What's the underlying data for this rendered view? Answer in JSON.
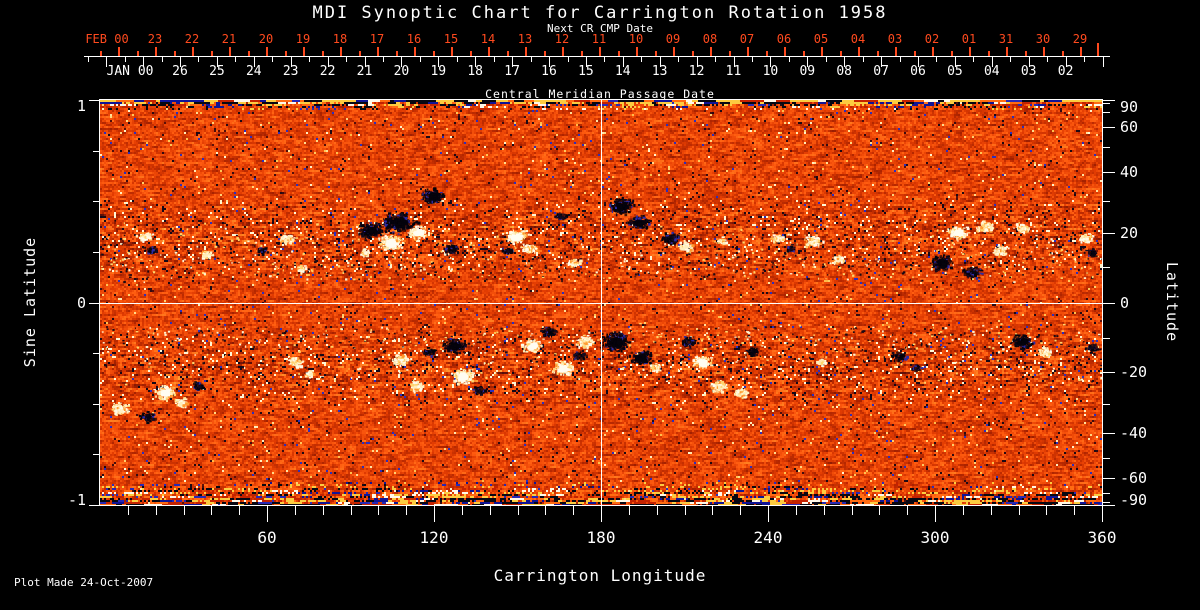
{
  "title": "MDI Synoptic Chart for Carrington Rotation 1958",
  "colors": {
    "accent_red": "#ff4a1e",
    "fg": "#ffffff",
    "bg": "#000000"
  },
  "top_axis": {
    "secondary_label": "Next CR CMP Date",
    "primary_label": "Central Meridian Passage Date",
    "next_rotation_row": {
      "prefix": "FEB 00",
      "days": [
        "23",
        "22",
        "21",
        "20",
        "19",
        "18",
        "17",
        "16",
        "15",
        "14",
        "13",
        "12",
        "11",
        "10",
        "09",
        "08",
        "07",
        "06",
        "05",
        "04",
        "03",
        "02",
        "01",
        "31",
        "30",
        "29"
      ]
    },
    "current_rotation_row": {
      "prefix": "JAN 00",
      "days": [
        "26",
        "25",
        "24",
        "23",
        "22",
        "21",
        "20",
        "19",
        "18",
        "17",
        "16",
        "15",
        "14",
        "13",
        "12",
        "11",
        "10",
        "09",
        "08",
        "07",
        "06",
        "05",
        "04",
        "03",
        "02"
      ]
    }
  },
  "x_axis": {
    "label": "Carrington Longitude",
    "ticks": [
      "60",
      "120",
      "180",
      "240",
      "300",
      "360"
    ]
  },
  "y_axis_left": {
    "label": "Sine Latitude",
    "ticks": [
      "1",
      "0",
      "-1"
    ]
  },
  "y_axis_right": {
    "label": "Latitude",
    "ticks": [
      "90",
      "60",
      "40",
      "20",
      "0",
      "-20",
      "-40",
      "-60",
      "-90"
    ]
  },
  "footer": {
    "plot_made": "Plot Made 24-Oct-2007"
  },
  "chart_data": {
    "type": "heatmap",
    "title": "MDI Synoptic Chart for Carrington Rotation 1958",
    "xlabel": "Carrington Longitude",
    "ylabel_left": "Sine Latitude",
    "ylabel_right": "Latitude",
    "top_axis_label": "Central Meridian Passage Date",
    "top_axis_secondary_label": "Next CR CMP Date",
    "xlim": [
      0,
      360
    ],
    "x_major_ticks": [
      60,
      120,
      180,
      240,
      300,
      360
    ],
    "sine_latitude_lim": [
      -1,
      1
    ],
    "latitude_labeled_ticks": [
      90,
      60,
      40,
      20,
      0,
      -20,
      -40,
      -60,
      -90
    ],
    "latitude_minor_ticks": [
      80,
      70,
      50,
      30,
      10,
      -10,
      -30,
      -50,
      -70,
      -80
    ],
    "crosshair": {
      "longitude": 180,
      "sine_latitude": 0
    },
    "base_palette": [
      "#140818",
      "#601008",
      "#a82200",
      "#e23c02",
      "#ff5c10",
      "#ff8222",
      "#ffc450",
      "#fff8d6"
    ],
    "speck_colors": {
      "blue": "#2c2ebc",
      "dark": "#1c0a14",
      "bright": "#fff3cf"
    },
    "polar_noise_bands": "streaky dark/yellow/blue noise along top and bottom edges",
    "active_regions": [
      [
        16,
        0.33,
        "p",
        6
      ],
      [
        18,
        0.26,
        "n",
        4
      ],
      [
        38,
        0.24,
        "p",
        5
      ],
      [
        58,
        0.26,
        "n",
        4
      ],
      [
        67,
        0.32,
        "p",
        6
      ],
      [
        72,
        0.17,
        "p",
        4
      ],
      [
        95,
        0.25,
        "p",
        5
      ],
      [
        97,
        0.36,
        "n",
        9
      ],
      [
        104,
        0.3,
        "p",
        9
      ],
      [
        107,
        0.4,
        "n",
        13
      ],
      [
        114,
        0.35,
        "p",
        8
      ],
      [
        119,
        0.53,
        "n",
        9
      ],
      [
        126,
        0.27,
        "n",
        6
      ],
      [
        149,
        0.33,
        "p",
        8
      ],
      [
        154,
        0.27,
        "p",
        6
      ],
      [
        146,
        0.26,
        "n",
        4
      ],
      [
        165,
        0.43,
        "n",
        5
      ],
      [
        170,
        0.2,
        "p",
        5
      ],
      [
        187,
        0.48,
        "n",
        10
      ],
      [
        193,
        0.4,
        "n",
        8
      ],
      [
        205,
        0.32,
        "n",
        7
      ],
      [
        210,
        0.28,
        "p",
        6
      ],
      [
        223,
        0.31,
        "p",
        4
      ],
      [
        243,
        0.32,
        "p",
        5
      ],
      [
        248,
        0.27,
        "n",
        4
      ],
      [
        256,
        0.31,
        "p",
        7
      ],
      [
        265,
        0.22,
        "p",
        5
      ],
      [
        302,
        0.2,
        "n",
        9
      ],
      [
        308,
        0.35,
        "p",
        8
      ],
      [
        313,
        0.15,
        "n",
        7
      ],
      [
        318,
        0.38,
        "p",
        7
      ],
      [
        323,
        0.26,
        "p",
        6
      ],
      [
        331,
        0.37,
        "p",
        6
      ],
      [
        354,
        0.32,
        "p",
        6
      ],
      [
        356,
        0.25,
        "n",
        5
      ],
      [
        7,
        -0.52,
        "p",
        7
      ],
      [
        17,
        -0.56,
        "n",
        6
      ],
      [
        23,
        -0.44,
        "p",
        8
      ],
      [
        29,
        -0.49,
        "p",
        6
      ],
      [
        35,
        -0.41,
        "n",
        5
      ],
      [
        70,
        -0.29,
        "p",
        6
      ],
      [
        75,
        -0.35,
        "p",
        4
      ],
      [
        108,
        -0.28,
        "p",
        7
      ],
      [
        113,
        -0.41,
        "p",
        6
      ],
      [
        118,
        -0.24,
        "n",
        5
      ],
      [
        127,
        -0.21,
        "n",
        9
      ],
      [
        130,
        -0.36,
        "p",
        9
      ],
      [
        136,
        -0.43,
        "n",
        5
      ],
      [
        155,
        -0.21,
        "p",
        8
      ],
      [
        161,
        -0.14,
        "n",
        6
      ],
      [
        166,
        -0.32,
        "p",
        9
      ],
      [
        172,
        -0.26,
        "n",
        5
      ],
      [
        174,
        -0.19,
        "p",
        7
      ],
      [
        185,
        -0.19,
        "n",
        11
      ],
      [
        194,
        -0.27,
        "n",
        9
      ],
      [
        199,
        -0.32,
        "p",
        5
      ],
      [
        211,
        -0.19,
        "n",
        6
      ],
      [
        216,
        -0.29,
        "p",
        8
      ],
      [
        222,
        -0.41,
        "p",
        7
      ],
      [
        230,
        -0.44,
        "p",
        6
      ],
      [
        234,
        -0.24,
        "n",
        5
      ],
      [
        259,
        -0.29,
        "p",
        4
      ],
      [
        287,
        -0.26,
        "n",
        6
      ],
      [
        293,
        -0.32,
        "n",
        4
      ],
      [
        331,
        -0.19,
        "n",
        8
      ],
      [
        339,
        -0.24,
        "p",
        6
      ],
      [
        356,
        -0.22,
        "n",
        5
      ]
    ]
  }
}
